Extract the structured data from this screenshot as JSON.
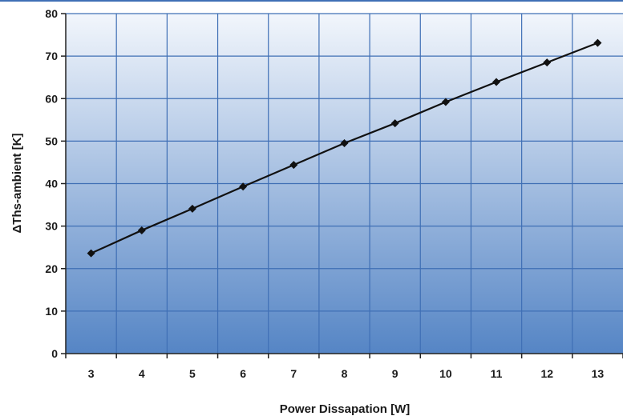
{
  "chart_data": {
    "type": "line",
    "xlabel": "Power Dissapation [W]",
    "ylabel": "ΔThs-ambient [K]",
    "x": [
      3,
      4,
      5,
      6,
      7,
      8,
      9,
      10,
      11,
      12,
      13
    ],
    "xticks": [
      "3",
      "4",
      "5",
      "6",
      "7",
      "8",
      "9",
      "10",
      "11",
      "12",
      "13"
    ],
    "yticks": [
      "0",
      "10",
      "20",
      "30",
      "40",
      "50",
      "60",
      "70",
      "80"
    ],
    "xlim": [
      2.5,
      13.5
    ],
    "ylim": [
      0,
      80
    ],
    "grid": true,
    "series": [
      {
        "values": [
          23.6,
          29.0,
          34.1,
          39.3,
          44.4,
          49.5,
          54.2,
          59.2,
          63.9,
          68.5,
          73.1
        ]
      }
    ],
    "colors": {
      "plot_top": "#f2f6fc",
      "plot_bottom": "#5585c5",
      "grid": "#3f6fb5",
      "line": "#111111",
      "marker": "#111111"
    }
  }
}
